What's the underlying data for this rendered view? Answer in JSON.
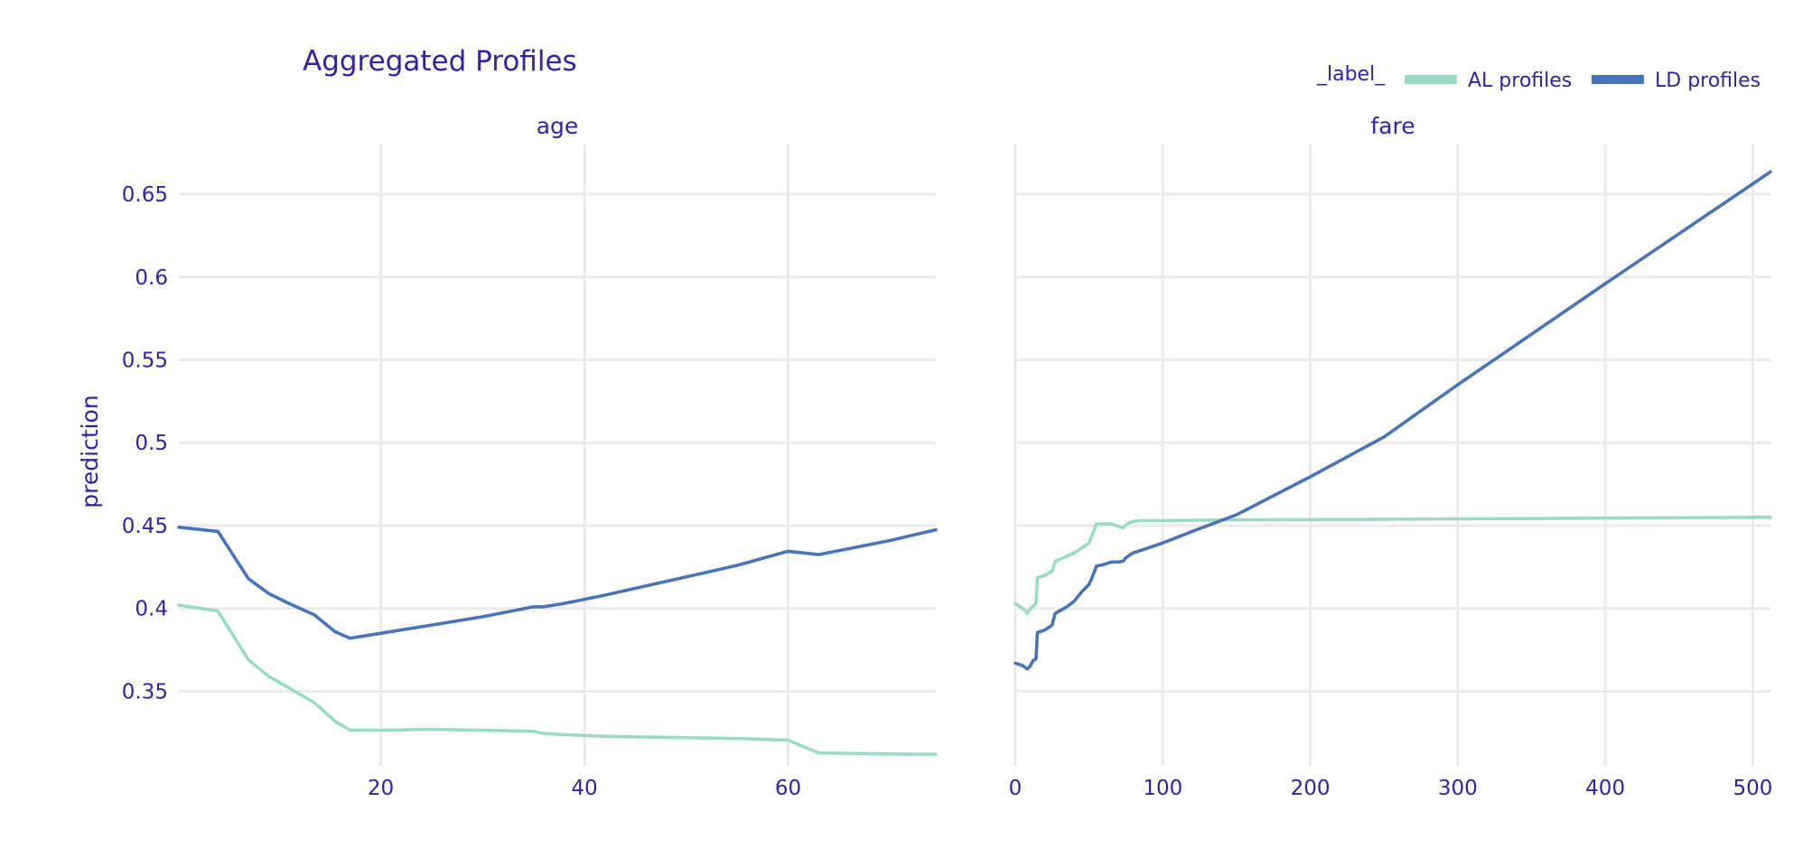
{
  "chart_data": {
    "type": "line",
    "title": "Aggregated Profiles",
    "ylabel": "prediction",
    "legend": {
      "title": "_label_",
      "placement": "top-right",
      "entries": [
        {
          "name": "AL profiles",
          "color": "#9bdbc4"
        },
        {
          "name": "LD profiles",
          "color": "#4a74b8"
        }
      ]
    },
    "grid": true,
    "ylim": [
      0.305,
      0.68
    ],
    "yticks": [
      {
        "value": 0.35,
        "label": "0.35"
      },
      {
        "value": 0.4,
        "label": "0.4"
      },
      {
        "value": 0.45,
        "label": "0.45"
      },
      {
        "value": 0.5,
        "label": "0.5"
      },
      {
        "value": 0.55,
        "label": "0.55"
      },
      {
        "value": 0.6,
        "label": "0.6"
      },
      {
        "value": 0.65,
        "label": "0.65"
      }
    ],
    "panels": [
      {
        "name": "age",
        "title": "age",
        "xlim": [
          0.17,
          74.5
        ],
        "xticks": [
          {
            "value": 20,
            "label": "20"
          },
          {
            "value": 40,
            "label": "40"
          },
          {
            "value": 60,
            "label": "60"
          }
        ],
        "series": [
          {
            "name": "LD profiles",
            "color": "#4a74b8",
            "x": [
              0.17,
              4,
              7,
              9,
              11,
              13.5,
              15.5,
              17,
              20,
              25,
              30,
              35,
              36,
              38,
              42,
              50,
              55,
              60,
              63,
              70,
              74.5
            ],
            "y": [
              0.449,
              0.4465,
              0.418,
              0.409,
              0.403,
              0.396,
              0.386,
              0.382,
              0.385,
              0.39,
              0.395,
              0.401,
              0.401,
              0.403,
              0.408,
              0.419,
              0.426,
              0.4345,
              0.4325,
              0.441,
              0.4475
            ]
          },
          {
            "name": "AL profiles",
            "color": "#9bdbc4",
            "x": [
              0.17,
              4,
              7,
              9,
              11,
              13.5,
              15.5,
              17,
              20,
              25,
              30,
              35,
              36,
              38,
              42,
              50,
              55,
              60,
              63,
              70,
              74.5
            ],
            "y": [
              0.402,
              0.3985,
              0.369,
              0.359,
              0.352,
              0.343,
              0.332,
              0.3265,
              0.3265,
              0.327,
              0.3265,
              0.3258,
              0.3245,
              0.3238,
              0.3228,
              0.322,
              0.3215,
              0.3205,
              0.3128,
              0.3122,
              0.312
            ]
          }
        ]
      },
      {
        "name": "fare",
        "title": "fare",
        "xlim": [
          0,
          512
        ],
        "xticks": [
          {
            "value": 0,
            "label": "0"
          },
          {
            "value": 100,
            "label": "100"
          },
          {
            "value": 200,
            "label": "200"
          },
          {
            "value": 300,
            "label": "300"
          },
          {
            "value": 400,
            "label": "400"
          },
          {
            "value": 500,
            "label": "500"
          }
        ],
        "series": [
          {
            "name": "LD profiles",
            "color": "#4a74b8",
            "x": [
              0,
              5,
              8,
              10,
              12,
              14,
              15,
              20,
              25,
              27,
              30,
              35,
              40,
              45,
              50,
              52,
              55,
              60,
              65,
              70,
              73,
              75,
              78,
              80,
              85,
              100,
              120,
              150,
              200,
              250,
              300,
              400,
              512
            ],
            "y": [
              0.367,
              0.3655,
              0.3635,
              0.365,
              0.3685,
              0.3695,
              0.3855,
              0.387,
              0.39,
              0.397,
              0.3985,
              0.401,
              0.4045,
              0.41,
              0.4145,
              0.4185,
              0.4255,
              0.4265,
              0.428,
              0.428,
              0.4285,
              0.4305,
              0.4325,
              0.4335,
              0.435,
              0.4395,
              0.4465,
              0.4565,
              0.4795,
              0.5035,
              0.535,
              0.596,
              0.6635
            ]
          },
          {
            "name": "AL profiles",
            "color": "#9bdbc4",
            "x": [
              0,
              5,
              7,
              8,
              10,
              12,
              14,
              15,
              20,
              25,
              27,
              30,
              35,
              40,
              45,
              50,
              52,
              55,
              60,
              65,
              70,
              73,
              75,
              78,
              80,
              85,
              100,
              150,
              250,
              400,
              512
            ],
            "y": [
              0.403,
              0.4,
              0.3985,
              0.397,
              0.3995,
              0.4015,
              0.403,
              0.4185,
              0.42,
              0.4225,
              0.4285,
              0.4295,
              0.4315,
              0.4335,
              0.4365,
              0.4395,
              0.444,
              0.451,
              0.451,
              0.451,
              0.4495,
              0.4485,
              0.4505,
              0.452,
              0.4525,
              0.453,
              0.453,
              0.4535,
              0.4538,
              0.4545,
              0.455
            ]
          }
        ]
      }
    ]
  }
}
